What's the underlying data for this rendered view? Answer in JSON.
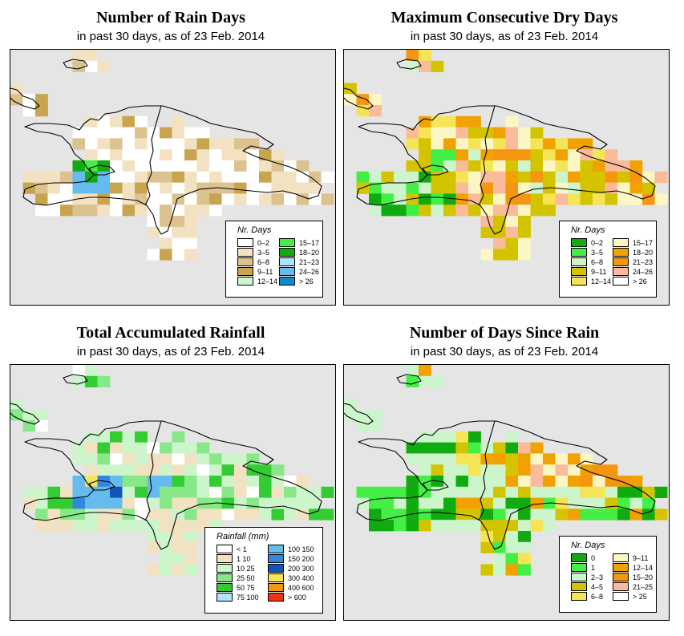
{
  "panels": [
    {
      "id": "rain-days",
      "title": "Number of Rain Days",
      "subtitle": "in past 30 days, as of  23 Feb. 2014",
      "legend": {
        "title": "Nr. Days",
        "items": [
          {
            "label": "0–2",
            "color": "#ffffff"
          },
          {
            "label": "3–5",
            "color": "#f2e2c2"
          },
          {
            "label": "6–8",
            "color": "#dcc28e"
          },
          {
            "label": "9–11",
            "color": "#c9a44e"
          },
          {
            "label": "12–14",
            "color": "#ccf5cc"
          },
          {
            "label": "15–17",
            "color": "#44ee44"
          },
          {
            "label": "18–20",
            "color": "#11aa11"
          },
          {
            "label": "21–23",
            "color": "#b0e4f8"
          },
          {
            "label": "24–26",
            "color": "#66bbee"
          },
          {
            "label": "> 26",
            "color": "#1188cc"
          }
        ]
      }
    },
    {
      "id": "max-dry-days",
      "title": "Maximum Consecutive Dry Days",
      "subtitle": "in past 30 days, as of  23 Feb. 2014",
      "legend": {
        "title": "Nr. Days",
        "items": [
          {
            "label": "0–2",
            "color": "#11aa11"
          },
          {
            "label": "3–5",
            "color": "#44ee44"
          },
          {
            "label": "6–8",
            "color": "#ccf5cc"
          },
          {
            "label": "9–11",
            "color": "#d4c400"
          },
          {
            "label": "12–14",
            "color": "#f5e455"
          },
          {
            "label": "15–17",
            "color": "#fbf6c4"
          },
          {
            "label": "18–20",
            "color": "#f1a100"
          },
          {
            "label": "21–23",
            "color": "#f59611"
          },
          {
            "label": "24–26",
            "color": "#f9bb99"
          },
          {
            "label": "> 26",
            "color": "#ffffff"
          }
        ]
      }
    },
    {
      "id": "total-rainfall",
      "title": "Total Accumulated Rainfall",
      "subtitle": "in past 30 days, as of  23 Feb. 2014",
      "legend": {
        "title": "Rainfall (mm)",
        "items": [
          {
            "label": "< 1",
            "color": "#ffffff"
          },
          {
            "label": "1      10",
            "color": "#f2e2c2"
          },
          {
            "label": "10      25",
            "color": "#ccf5cc"
          },
          {
            "label": "25      50",
            "color": "#88e888"
          },
          {
            "label": "50      75",
            "color": "#33cc33"
          },
          {
            "label": "75    100",
            "color": "#b0e4f8"
          },
          {
            "label": "100    150",
            "color": "#66bbee"
          },
          {
            "label": "150    200",
            "color": "#3388dd"
          },
          {
            "label": "200    300",
            "color": "#1155bb"
          },
          {
            "label": "300    400",
            "color": "#f5e455"
          },
          {
            "label": "400    600",
            "color": "#f59611"
          },
          {
            "label": "> 600",
            "color": "#ee3311"
          }
        ]
      }
    },
    {
      "id": "days-since-rain",
      "title": "Number of Days Since Rain",
      "subtitle": "in past 30 days, as of  23 Feb. 2014",
      "legend": {
        "title": "Nr. Days",
        "items": [
          {
            "label": "0",
            "color": "#11aa11"
          },
          {
            "label": "1",
            "color": "#44ee44"
          },
          {
            "label": "2–3",
            "color": "#ccf5cc"
          },
          {
            "label": "4–5",
            "color": "#d4c400"
          },
          {
            "label": "6–8",
            "color": "#f5e455"
          },
          {
            "label": "9–11",
            "color": "#fbf6c4"
          },
          {
            "label": "12–14",
            "color": "#f1a100"
          },
          {
            "label": "15–20",
            "color": "#f59611"
          },
          {
            "label": "21–25",
            "color": "#f9bb99"
          },
          {
            "label": "> 25",
            "color": "#ffffff"
          }
        ]
      }
    }
  ]
}
